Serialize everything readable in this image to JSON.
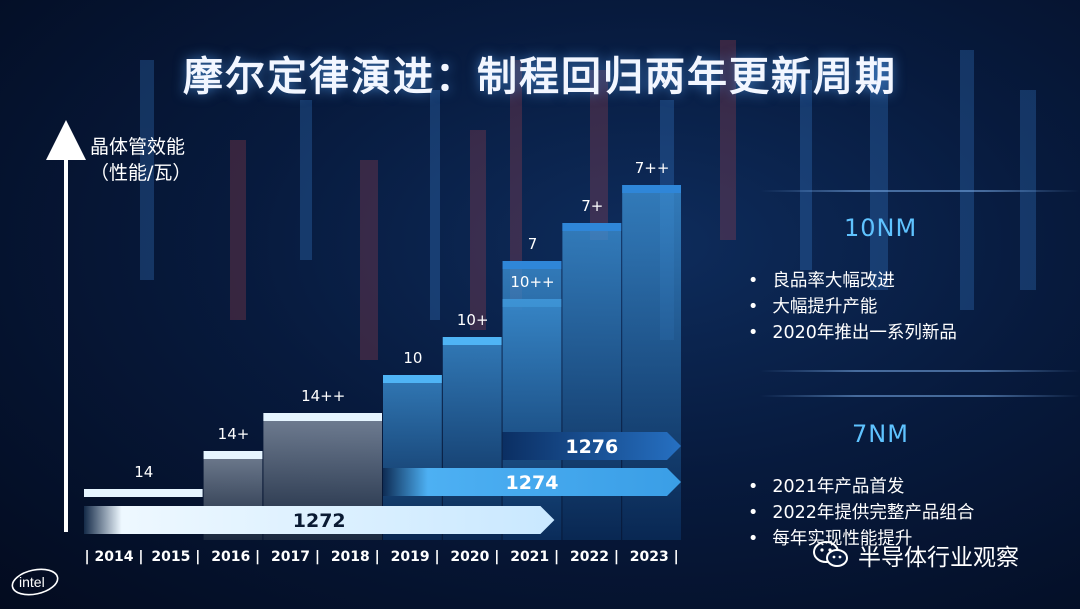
{
  "title": "摩尔定律演进：制程回归两年更新周期",
  "y_axis_label_line1": "晶体管效能",
  "y_axis_label_line2": "（性能/瓦）",
  "colors": {
    "accent": "#5fc3ff",
    "bar_light": "#dff3ff",
    "bar_mid": "#49a7ea",
    "bar_dark": "#0b3b73",
    "background": "#071a3d"
  },
  "chart_data": {
    "type": "bar",
    "title": "摩尔定律演进：制程回归两年更新周期",
    "ylabel": "晶体管效能（性能/瓦）",
    "categories": [
      "2014",
      "2015",
      "2016",
      "2017",
      "2018",
      "2019",
      "2020",
      "2021",
      "2022",
      "2023"
    ],
    "x_axis_labels": [
      "| 2014 |",
      "2015 |",
      "2016 |",
      "2017 |",
      "2018 |",
      "2019 |",
      "2020 |",
      "2021 |",
      "2022 |",
      "2023 |"
    ],
    "nodes": [
      {
        "label": "14",
        "start_year": "2014",
        "end_year": "2015",
        "level": 1
      },
      {
        "label": "14+",
        "start_year": "2016",
        "end_year": "2016",
        "level": 2
      },
      {
        "label": "14++",
        "start_year": "2017",
        "end_year": "2018",
        "level": 3
      },
      {
        "label": "10",
        "start_year": "2019",
        "end_year": "2019",
        "level": 4
      },
      {
        "label": "10+",
        "start_year": "2020",
        "end_year": "2020",
        "level": 5
      },
      {
        "label": "10++",
        "start_year": "2021",
        "end_year": "2021",
        "level": 6
      },
      {
        "label": "7",
        "start_year": "2021",
        "end_year": "2021",
        "level": 7
      },
      {
        "label": "7+",
        "start_year": "2022",
        "end_year": "2022",
        "level": 8
      },
      {
        "label": "7++",
        "start_year": "2023",
        "end_year": "2023",
        "level": 9
      }
    ],
    "process_arrows": [
      {
        "label": "1272",
        "start_year": "2014",
        "end_year": "2021"
      },
      {
        "label": "1274",
        "start_year": "2019",
        "end_year": "2023"
      },
      {
        "label": "1276",
        "start_year": "2021",
        "end_year": "2023"
      }
    ],
    "grid": false,
    "legend": "none"
  },
  "sections": [
    {
      "heading": "10NM",
      "bullets": [
        "良品率大幅改进",
        "大幅提升产能",
        "2020年推出一系列新品"
      ]
    },
    {
      "heading": "7NM",
      "bullets": [
        "2021年产品首发",
        "2022年提供完整产品组合",
        "每年实现性能提升"
      ]
    }
  ],
  "logo_text": "intel",
  "watermark": "半导体行业观察"
}
